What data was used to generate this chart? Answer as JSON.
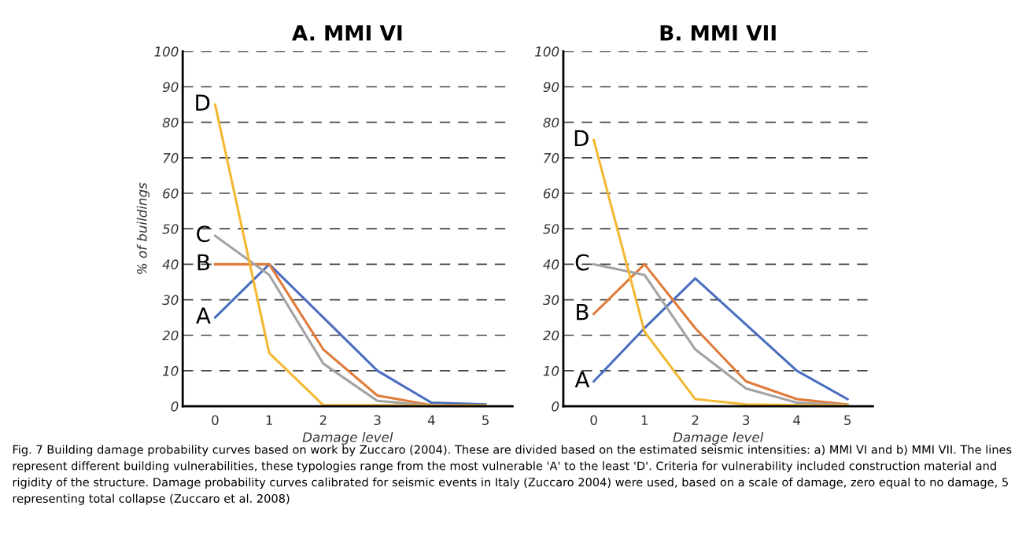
{
  "chart_data": [
    {
      "type": "line",
      "title": "A. MMI VI",
      "xlabel": "Damage level",
      "ylabel": "% of buildings",
      "categories": [
        "0",
        "1",
        "2",
        "3",
        "4",
        "5"
      ],
      "series": [
        {
          "name": "A",
          "color": "#4a6ec0",
          "values": [
            25,
            40,
            25,
            10,
            1,
            0.5
          ]
        },
        {
          "name": "B",
          "color": "#e07b39",
          "values": [
            40,
            40,
            16,
            3,
            0.3,
            0.2
          ]
        },
        {
          "name": "C",
          "color": "#a3a3a3",
          "values": [
            48,
            37,
            12,
            1.5,
            0.2,
            0.1
          ]
        },
        {
          "name": "D",
          "color": "#f4b731",
          "values": [
            85,
            15,
            0.3,
            0.3,
            0.2,
            0.2
          ]
        }
      ],
      "ylim": [
        0,
        100
      ],
      "yticks": [
        0,
        10,
        20,
        30,
        40,
        50,
        60,
        70,
        80,
        90,
        100
      ],
      "grid": "y",
      "marker": "none",
      "line_style": "solid",
      "annotations": [
        "Fig. 7 Building damage probability curves based on work by Zuccaro (2004). These are divided based on the estimated seismic intensities: a) MMI VI and b) MMI VII. The lines represent different building vulnerabilities, these typologies range from the most vulnerable 'A' to the least 'D'. Criteria for vulnerability included construction material and rigidity of the structure. Damage probability curves calibrated for seismic events in Italy (Zuccaro 2004) were used, based on a scale of damage, zero equal to no damage, 5 representing total collapse (Zuccaro et al. 2008)"
      ]
    },
    {
      "type": "line",
      "title": "B. MMI VII",
      "xlabel": "Damage level",
      "categories": [
        "0",
        "1",
        "2",
        "3",
        "4",
        "5"
      ],
      "series": [
        {
          "name": "A",
          "color": "#4a6ec0",
          "values": [
            7,
            22,
            36,
            23,
            10,
            2
          ]
        },
        {
          "name": "B",
          "color": "#e07b39",
          "values": [
            26,
            40,
            22,
            7,
            2,
            0.5
          ]
        },
        {
          "name": "C",
          "color": "#a3a3a3",
          "values": [
            40,
            37,
            16,
            5,
            1,
            0.3
          ]
        },
        {
          "name": "D",
          "color": "#f4b731",
          "values": [
            75,
            21,
            2,
            0.5,
            0.3,
            0.2
          ]
        }
      ],
      "ylim": [
        0,
        100
      ],
      "yticks": [
        0,
        10,
        20,
        30,
        40,
        50,
        60,
        70,
        80,
        90,
        100
      ],
      "grid": "y",
      "marker": "none",
      "line_style": "solid"
    }
  ]
}
